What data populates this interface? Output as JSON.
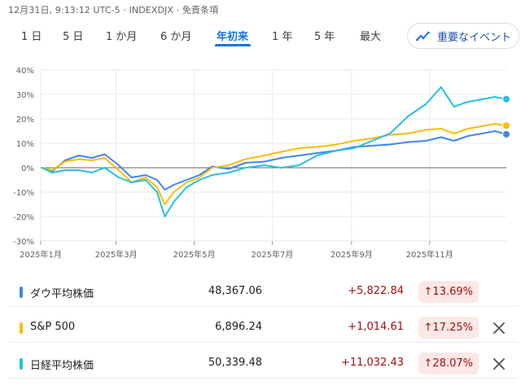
{
  "header": {
    "status": "12月31日, 9:13:12 UTC-5 · INDEXDJX · 免責条項"
  },
  "tabs": [
    {
      "label": "1 日"
    },
    {
      "label": "5 日"
    },
    {
      "label": "1 か月"
    },
    {
      "label": "6 か月"
    },
    {
      "label": "年初来",
      "active": true
    },
    {
      "label": "1 年"
    },
    {
      "label": "5 年"
    },
    {
      "label": "最大"
    }
  ],
  "events_button": {
    "label": "重要なイベント",
    "icon": "trend-icon"
  },
  "colors": {
    "dow": "#4285f4",
    "sp500": "#fbbc04",
    "nikkei": "#24c1e0",
    "accent": "#1a73e8",
    "negative_text": "#a50e0e",
    "badge_bg": "#fce8e6"
  },
  "chart_data": {
    "type": "line",
    "ylim": [
      -30,
      40
    ],
    "yticks": [
      "40%",
      "30%",
      "20%",
      "10%",
      "0%",
      "-10%",
      "-20%",
      "-30%"
    ],
    "xticks": [
      "2025年1月",
      "2025年3月",
      "2025年5月",
      "2025年7月",
      "2025年9月",
      "2025年11月"
    ],
    "grid": true,
    "baseline": 0,
    "series": [
      {
        "name": "ダウ平均株価",
        "key": "dow",
        "x": [
          "2025-01-02",
          "2025-01-10",
          "2025-01-20",
          "2025-01-31",
          "2025-02-10",
          "2025-02-20",
          "2025-03-03",
          "2025-03-13",
          "2025-03-24",
          "2025-04-02",
          "2025-04-08",
          "2025-04-15",
          "2025-04-25",
          "2025-05-05",
          "2025-05-15",
          "2025-05-28",
          "2025-06-10",
          "2025-06-25",
          "2025-07-08",
          "2025-07-22",
          "2025-08-05",
          "2025-08-20",
          "2025-09-03",
          "2025-09-17",
          "2025-10-01",
          "2025-10-15",
          "2025-10-29",
          "2025-11-10",
          "2025-11-20",
          "2025-12-01",
          "2025-12-12",
          "2025-12-22",
          "2025-12-31"
        ],
        "values": [
          0,
          -1.5,
          3,
          5,
          4,
          5.5,
          1,
          -4,
          -3,
          -5,
          -9,
          -7,
          -5,
          -3,
          0.5,
          -0.5,
          2,
          2.5,
          4,
          5,
          6,
          7,
          8.5,
          9,
          9.5,
          10.5,
          11,
          12.5,
          11,
          13,
          14,
          15,
          13.69
        ]
      },
      {
        "name": "S&P 500",
        "key": "sp500",
        "x": [
          "2025-01-02",
          "2025-01-10",
          "2025-01-20",
          "2025-01-31",
          "2025-02-10",
          "2025-02-20",
          "2025-03-03",
          "2025-03-13",
          "2025-03-24",
          "2025-04-02",
          "2025-04-08",
          "2025-04-15",
          "2025-04-25",
          "2025-05-05",
          "2025-05-15",
          "2025-05-28",
          "2025-06-10",
          "2025-06-25",
          "2025-07-08",
          "2025-07-22",
          "2025-08-05",
          "2025-08-20",
          "2025-09-03",
          "2025-09-17",
          "2025-10-01",
          "2025-10-15",
          "2025-10-29",
          "2025-11-10",
          "2025-11-20",
          "2025-12-01",
          "2025-12-12",
          "2025-12-22",
          "2025-12-31"
        ],
        "values": [
          0,
          -1,
          2.5,
          3.5,
          3,
          4,
          -1,
          -6,
          -4,
          -8,
          -15,
          -10,
          -6,
          -4,
          0,
          1,
          3.5,
          5,
          6.5,
          8,
          8.5,
          9.5,
          11,
          12,
          13.5,
          14,
          15.5,
          16,
          14,
          16,
          17,
          18,
          17.25
        ]
      },
      {
        "name": "日経平均株価",
        "key": "nikkei",
        "x": [
          "2025-01-02",
          "2025-01-10",
          "2025-01-20",
          "2025-01-31",
          "2025-02-10",
          "2025-02-20",
          "2025-03-03",
          "2025-03-13",
          "2025-03-24",
          "2025-04-02",
          "2025-04-08",
          "2025-04-15",
          "2025-04-25",
          "2025-05-05",
          "2025-05-15",
          "2025-05-28",
          "2025-06-10",
          "2025-06-25",
          "2025-07-08",
          "2025-07-22",
          "2025-08-05",
          "2025-08-20",
          "2025-09-03",
          "2025-09-17",
          "2025-10-01",
          "2025-10-15",
          "2025-10-29",
          "2025-11-10",
          "2025-11-20",
          "2025-12-01",
          "2025-12-12",
          "2025-12-22",
          "2025-12-31"
        ],
        "values": [
          0,
          -2,
          -1,
          -1,
          -2,
          0,
          -4,
          -6,
          -5,
          -10,
          -20,
          -14,
          -8,
          -5,
          -3,
          -2,
          0,
          1,
          0,
          1,
          5,
          7,
          8,
          11,
          14,
          21,
          26,
          33,
          25,
          27,
          28,
          29,
          28.07
        ]
      }
    ]
  },
  "legend": [
    {
      "name": "ダウ平均株価",
      "key": "dow",
      "value": "48,367.06",
      "change": "+5,822.84",
      "pct": "↑13.69%",
      "removable": false
    },
    {
      "name": "S&P 500",
      "key": "sp500",
      "value": "6,896.24",
      "change": "+1,014.61",
      "pct": "↑17.25%",
      "removable": true
    },
    {
      "name": "日経平均株価",
      "key": "nikkei",
      "value": "50,339.48",
      "change": "+11,032.43",
      "pct": "↑28.07%",
      "removable": true
    }
  ]
}
